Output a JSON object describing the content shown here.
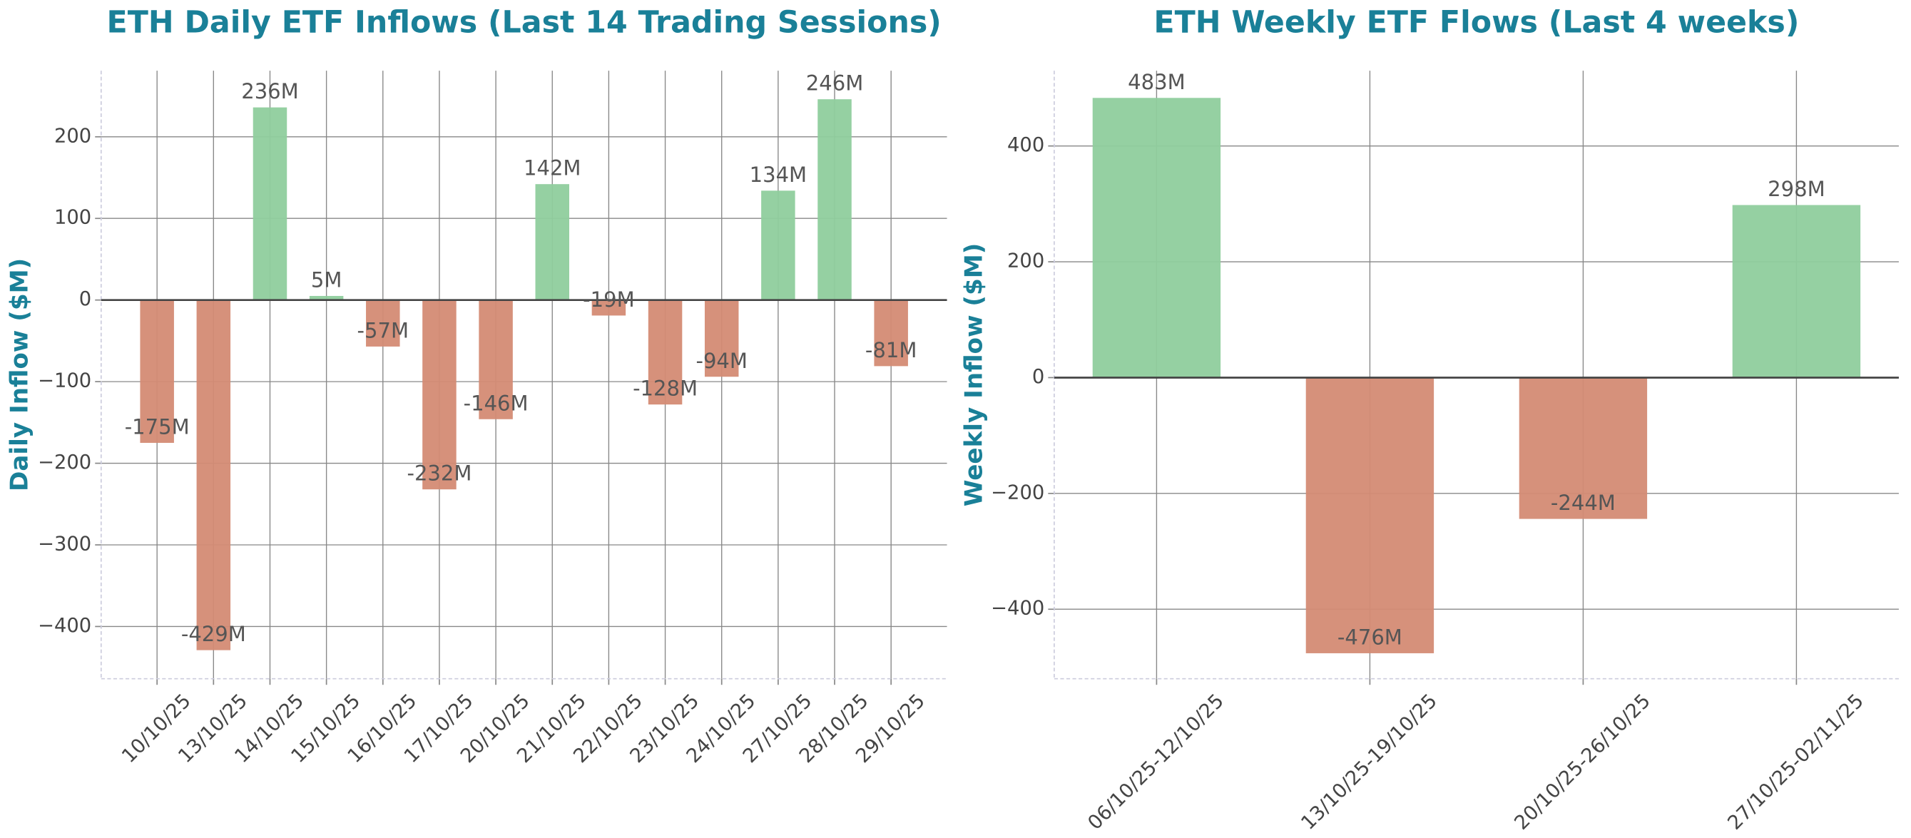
{
  "chart_data": [
    {
      "type": "bar",
      "title": "ETH Daily ETF Inflows (Last 14 Trading Sessions)",
      "y_label": "Daily Inflow ($M)",
      "categories": [
        "10/10/25",
        "13/10/25",
        "14/10/25",
        "15/10/25",
        "16/10/25",
        "17/10/25",
        "20/10/25",
        "21/10/25",
        "22/10/25",
        "23/10/25",
        "24/10/25",
        "27/10/25",
        "28/10/25",
        "29/10/25"
      ],
      "values": [
        -175,
        -429,
        236,
        5,
        -57,
        -232,
        -146,
        142,
        -19,
        -128,
        -94,
        134,
        246,
        -81
      ],
      "value_labels": [
        "-175M",
        "-429M",
        "236M",
        "5M",
        "-57M",
        "-232M",
        "-146M",
        "142M",
        "-19M",
        "-128M",
        "-94M",
        "134M",
        "246M",
        "-81M"
      ],
      "positive_color": "#8fcd9d",
      "negative_color": "#d48b74",
      "ylim": [
        -464,
        281
      ],
      "yticks": [
        {
          "value": -400,
          "label": "−400"
        },
        {
          "value": -300,
          "label": "−300"
        },
        {
          "value": -200,
          "label": "−200"
        },
        {
          "value": -100,
          "label": "−100"
        },
        0,
        100,
        200
      ],
      "grid": true
    },
    {
      "type": "bar",
      "title": "ETH Weekly ETF Flows (Last 4 weeks)",
      "y_label": "Weekly Inflow ($M)",
      "categories": [
        "06/10/25-12/10/25",
        "13/10/25-19/10/25",
        "20/10/25-26/10/25",
        "27/10/25-02/11/25"
      ],
      "values": [
        483,
        -476,
        -244,
        298
      ],
      "value_labels": [
        "483M",
        "-476M",
        "-244M",
        "298M"
      ],
      "positive_color": "#8fcd9d",
      "negative_color": "#d48b74",
      "ylim": [
        -520,
        530
      ],
      "yticks": [
        {
          "value": -400,
          "label": "−400"
        },
        {
          "value": -200,
          "label": "−200"
        },
        0,
        200,
        400
      ],
      "grid": true
    }
  ]
}
